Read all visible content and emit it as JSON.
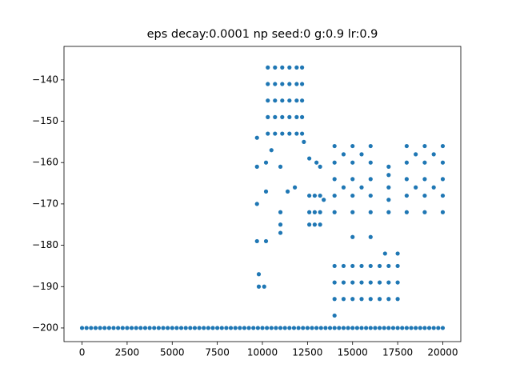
{
  "chart_data": {
    "type": "scatter",
    "title": "eps decay:0.0001 np seed:0 g:0.9 lr:0.9",
    "color": "#1f77b4",
    "xlim": [
      -1000,
      21000
    ],
    "ylim": [
      -203.3,
      -131.9
    ],
    "xticks": [
      0,
      2500,
      5000,
      7500,
      10000,
      12500,
      15000,
      17500,
      20000
    ],
    "yticks": [
      {
        "value": -200,
        "label": "−200"
      },
      {
        "value": -190,
        "label": "−190"
      },
      {
        "value": -180,
        "label": "−180"
      },
      {
        "value": -170,
        "label": "−170"
      },
      {
        "value": -160,
        "label": "−160"
      },
      {
        "value": -150,
        "label": "−150"
      },
      {
        "value": -140,
        "label": "−140"
      }
    ],
    "x": [
      0,
      250,
      500,
      750,
      1000,
      1250,
      1500,
      1750,
      2000,
      2250,
      2500,
      2750,
      3000,
      3250,
      3500,
      3750,
      4000,
      4250,
      4500,
      4750,
      5000,
      5250,
      5500,
      5750,
      6000,
      6250,
      6500,
      6750,
      7000,
      7250,
      7500,
      7750,
      8000,
      8250,
      8500,
      8750,
      9000,
      9250,
      9500,
      9750,
      10000,
      10250,
      10500,
      10750,
      11000,
      11250,
      11500,
      11750,
      12000,
      12250,
      12500,
      12750,
      13000,
      13250,
      13500,
      13750,
      14000,
      14250,
      14500,
      14750,
      15000,
      15250,
      15500,
      15750,
      16000,
      16250,
      16500,
      16750,
      17000,
      17250,
      17500,
      17750,
      18000,
      18250,
      18500,
      18750,
      19000,
      19250,
      19500,
      19750,
      20000,
      10300,
      10300,
      10300,
      10300,
      10300,
      10700,
      10700,
      10700,
      10700,
      10700,
      11100,
      11100,
      11100,
      11100,
      11100,
      11500,
      11500,
      11500,
      11500,
      11500,
      11900,
      11900,
      11900,
      11900,
      11900,
      12200,
      12200,
      12200,
      12200,
      12200,
      9700,
      9700,
      9700,
      9700,
      9800,
      9800,
      10100,
      10200,
      10200,
      10200,
      10500,
      11000,
      11000,
      11000,
      11000,
      11400,
      11800,
      12300,
      12600,
      12600,
      12600,
      12900,
      12900,
      12900,
      13200,
      13200,
      13200,
      12600,
      13000,
      13400,
      13200,
      14000,
      14000,
      14000,
      14000,
      14000,
      15000,
      15000,
      15000,
      15000,
      15000,
      16000,
      16000,
      16000,
      16000,
      16000,
      17000,
      17000,
      17000,
      17000,
      17000,
      18000,
      18000,
      18000,
      18000,
      18000,
      19000,
      19000,
      19000,
      19000,
      19000,
      20000,
      20000,
      20000,
      20000,
      20000,
      14500,
      14500,
      15500,
      15500,
      18500,
      18500,
      19500,
      19500,
      14000,
      14000,
      14000,
      14500,
      14500,
      14500,
      15000,
      15000,
      15000,
      15500,
      15500,
      15500,
      16000,
      16000,
      16000,
      16500,
      16500,
      16500,
      17000,
      17000,
      17000,
      17500,
      17500,
      17500,
      15000,
      16000,
      16800,
      17500,
      14000
    ],
    "values": [
      -200,
      -200,
      -200,
      -200,
      -200,
      -200,
      -200,
      -200,
      -200,
      -200,
      -200,
      -200,
      -200,
      -200,
      -200,
      -200,
      -200,
      -200,
      -200,
      -200,
      -200,
      -200,
      -200,
      -200,
      -200,
      -200,
      -200,
      -200,
      -200,
      -200,
      -200,
      -200,
      -200,
      -200,
      -200,
      -200,
      -200,
      -200,
      -200,
      -200,
      -200,
      -200,
      -200,
      -200,
      -200,
      -200,
      -200,
      -200,
      -200,
      -200,
      -200,
      -200,
      -200,
      -200,
      -200,
      -200,
      -200,
      -200,
      -200,
      -200,
      -200,
      -200,
      -200,
      -200,
      -200,
      -200,
      -200,
      -200,
      -200,
      -200,
      -200,
      -200,
      -200,
      -200,
      -200,
      -200,
      -200,
      -200,
      -200,
      -200,
      -200,
      -137,
      -141,
      -145,
      -149,
      -153,
      -137,
      -141,
      -145,
      -149,
      -153,
      -137,
      -141,
      -145,
      -149,
      -153,
      -137,
      -141,
      -145,
      -149,
      -153,
      -137,
      -141,
      -145,
      -149,
      -153,
      -137,
      -141,
      -145,
      -149,
      -153,
      -154,
      -161,
      -170,
      -179,
      -187,
      -190,
      -190,
      -179,
      -167,
      -160,
      -157,
      -161,
      -175,
      -177,
      -172,
      -167,
      -166,
      -155,
      -168,
      -172,
      -175,
      -168,
      -172,
      -175,
      -168,
      -172,
      -175,
      -159,
      -160,
      -169,
      -161,
      -156,
      -160,
      -164,
      -168,
      -172,
      -156,
      -160,
      -164,
      -168,
      -172,
      -156,
      -160,
      -164,
      -168,
      -172,
      -161,
      -163,
      -166,
      -169,
      -172,
      -156,
      -160,
      -164,
      -168,
      -172,
      -156,
      -160,
      -164,
      -168,
      -172,
      -156,
      -160,
      -164,
      -168,
      -172,
      -158,
      -166,
      -158,
      -166,
      -158,
      -166,
      -158,
      -166,
      -185,
      -189,
      -193,
      -185,
      -189,
      -193,
      -185,
      -189,
      -193,
      -185,
      -189,
      -193,
      -185,
      -189,
      -193,
      -185,
      -189,
      -193,
      -185,
      -189,
      -193,
      -185,
      -189,
      -193,
      -178,
      -178,
      -182,
      -182,
      -197
    ]
  }
}
